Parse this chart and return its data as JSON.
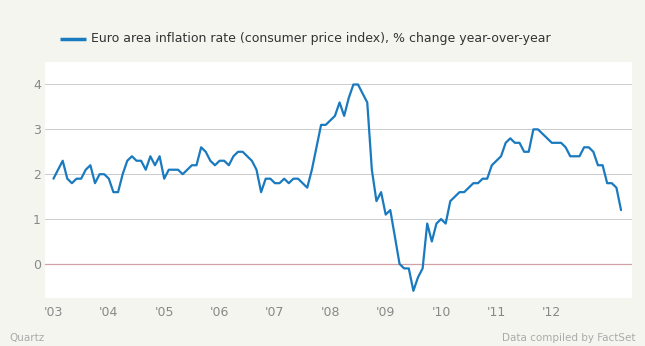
{
  "title": "Euro area inflation rate (consumer price index), % change year-over-year",
  "line_color": "#1a7abf",
  "plot_bg_color": "#ffffff",
  "fig_bg_color": "#f5f5f0",
  "grid_color": "#cccccc",
  "zero_line_color": "#d4a0a8",
  "footer_left": "Quartz",
  "footer_right": "Data compiled by FactSet",
  "footer_color": "#aaaaaa",
  "tick_color": "#888888",
  "ylim": [
    -0.75,
    4.5
  ],
  "yticks": [
    0,
    1,
    2,
    3,
    4
  ],
  "x_tick_labels": [
    "'03",
    "'04",
    "'05",
    "'06",
    "'07",
    "'08",
    "'09",
    "'10",
    "'11",
    "'12"
  ],
  "legend_line_color": "#1a7abf",
  "data": [
    [
      2003.0,
      1.9
    ],
    [
      2003.083,
      2.1
    ],
    [
      2003.167,
      2.3
    ],
    [
      2003.25,
      1.9
    ],
    [
      2003.333,
      1.8
    ],
    [
      2003.417,
      1.9
    ],
    [
      2003.5,
      1.9
    ],
    [
      2003.583,
      2.1
    ],
    [
      2003.667,
      2.2
    ],
    [
      2003.75,
      1.8
    ],
    [
      2003.833,
      2.0
    ],
    [
      2003.917,
      2.0
    ],
    [
      2004.0,
      1.9
    ],
    [
      2004.083,
      1.6
    ],
    [
      2004.167,
      1.6
    ],
    [
      2004.25,
      2.0
    ],
    [
      2004.333,
      2.3
    ],
    [
      2004.417,
      2.4
    ],
    [
      2004.5,
      2.3
    ],
    [
      2004.583,
      2.3
    ],
    [
      2004.667,
      2.1
    ],
    [
      2004.75,
      2.4
    ],
    [
      2004.833,
      2.2
    ],
    [
      2004.917,
      2.4
    ],
    [
      2005.0,
      1.9
    ],
    [
      2005.083,
      2.1
    ],
    [
      2005.167,
      2.1
    ],
    [
      2005.25,
      2.1
    ],
    [
      2005.333,
      2.0
    ],
    [
      2005.417,
      2.1
    ],
    [
      2005.5,
      2.2
    ],
    [
      2005.583,
      2.2
    ],
    [
      2005.667,
      2.6
    ],
    [
      2005.75,
      2.5
    ],
    [
      2005.833,
      2.3
    ],
    [
      2005.917,
      2.2
    ],
    [
      2006.0,
      2.3
    ],
    [
      2006.083,
      2.3
    ],
    [
      2006.167,
      2.2
    ],
    [
      2006.25,
      2.4
    ],
    [
      2006.333,
      2.5
    ],
    [
      2006.417,
      2.5
    ],
    [
      2006.5,
      2.4
    ],
    [
      2006.583,
      2.3
    ],
    [
      2006.667,
      2.1
    ],
    [
      2006.75,
      1.6
    ],
    [
      2006.833,
      1.9
    ],
    [
      2006.917,
      1.9
    ],
    [
      2007.0,
      1.8
    ],
    [
      2007.083,
      1.8
    ],
    [
      2007.167,
      1.9
    ],
    [
      2007.25,
      1.8
    ],
    [
      2007.333,
      1.9
    ],
    [
      2007.417,
      1.9
    ],
    [
      2007.5,
      1.8
    ],
    [
      2007.583,
      1.7
    ],
    [
      2007.667,
      2.1
    ],
    [
      2007.75,
      2.6
    ],
    [
      2007.833,
      3.1
    ],
    [
      2007.917,
      3.1
    ],
    [
      2008.0,
      3.2
    ],
    [
      2008.083,
      3.3
    ],
    [
      2008.167,
      3.6
    ],
    [
      2008.25,
      3.3
    ],
    [
      2008.333,
      3.7
    ],
    [
      2008.417,
      4.0
    ],
    [
      2008.5,
      4.0
    ],
    [
      2008.583,
      3.8
    ],
    [
      2008.667,
      3.6
    ],
    [
      2008.75,
      2.1
    ],
    [
      2008.833,
      1.4
    ],
    [
      2008.917,
      1.6
    ],
    [
      2009.0,
      1.1
    ],
    [
      2009.083,
      1.2
    ],
    [
      2009.167,
      0.6
    ],
    [
      2009.25,
      0.0
    ],
    [
      2009.333,
      -0.1
    ],
    [
      2009.417,
      -0.1
    ],
    [
      2009.5,
      -0.6
    ],
    [
      2009.583,
      -0.3
    ],
    [
      2009.667,
      -0.1
    ],
    [
      2009.75,
      0.9
    ],
    [
      2009.833,
      0.5
    ],
    [
      2009.917,
      0.9
    ],
    [
      2010.0,
      1.0
    ],
    [
      2010.083,
      0.9
    ],
    [
      2010.167,
      1.4
    ],
    [
      2010.25,
      1.5
    ],
    [
      2010.333,
      1.6
    ],
    [
      2010.417,
      1.6
    ],
    [
      2010.5,
      1.7
    ],
    [
      2010.583,
      1.8
    ],
    [
      2010.667,
      1.8
    ],
    [
      2010.75,
      1.9
    ],
    [
      2010.833,
      1.9
    ],
    [
      2010.917,
      2.2
    ],
    [
      2011.0,
      2.3
    ],
    [
      2011.083,
      2.4
    ],
    [
      2011.167,
      2.7
    ],
    [
      2011.25,
      2.8
    ],
    [
      2011.333,
      2.7
    ],
    [
      2011.417,
      2.7
    ],
    [
      2011.5,
      2.5
    ],
    [
      2011.583,
      2.5
    ],
    [
      2011.667,
      3.0
    ],
    [
      2011.75,
      3.0
    ],
    [
      2011.833,
      2.9
    ],
    [
      2011.917,
      2.8
    ],
    [
      2012.0,
      2.7
    ],
    [
      2012.083,
      2.7
    ],
    [
      2012.167,
      2.7
    ],
    [
      2012.25,
      2.6
    ],
    [
      2012.333,
      2.4
    ],
    [
      2012.417,
      2.4
    ],
    [
      2012.5,
      2.4
    ],
    [
      2012.583,
      2.6
    ],
    [
      2012.667,
      2.6
    ],
    [
      2012.75,
      2.5
    ],
    [
      2012.833,
      2.2
    ],
    [
      2012.917,
      2.2
    ],
    [
      2013.0,
      1.8
    ],
    [
      2013.083,
      1.8
    ],
    [
      2013.167,
      1.7
    ],
    [
      2013.25,
      1.2
    ]
  ]
}
